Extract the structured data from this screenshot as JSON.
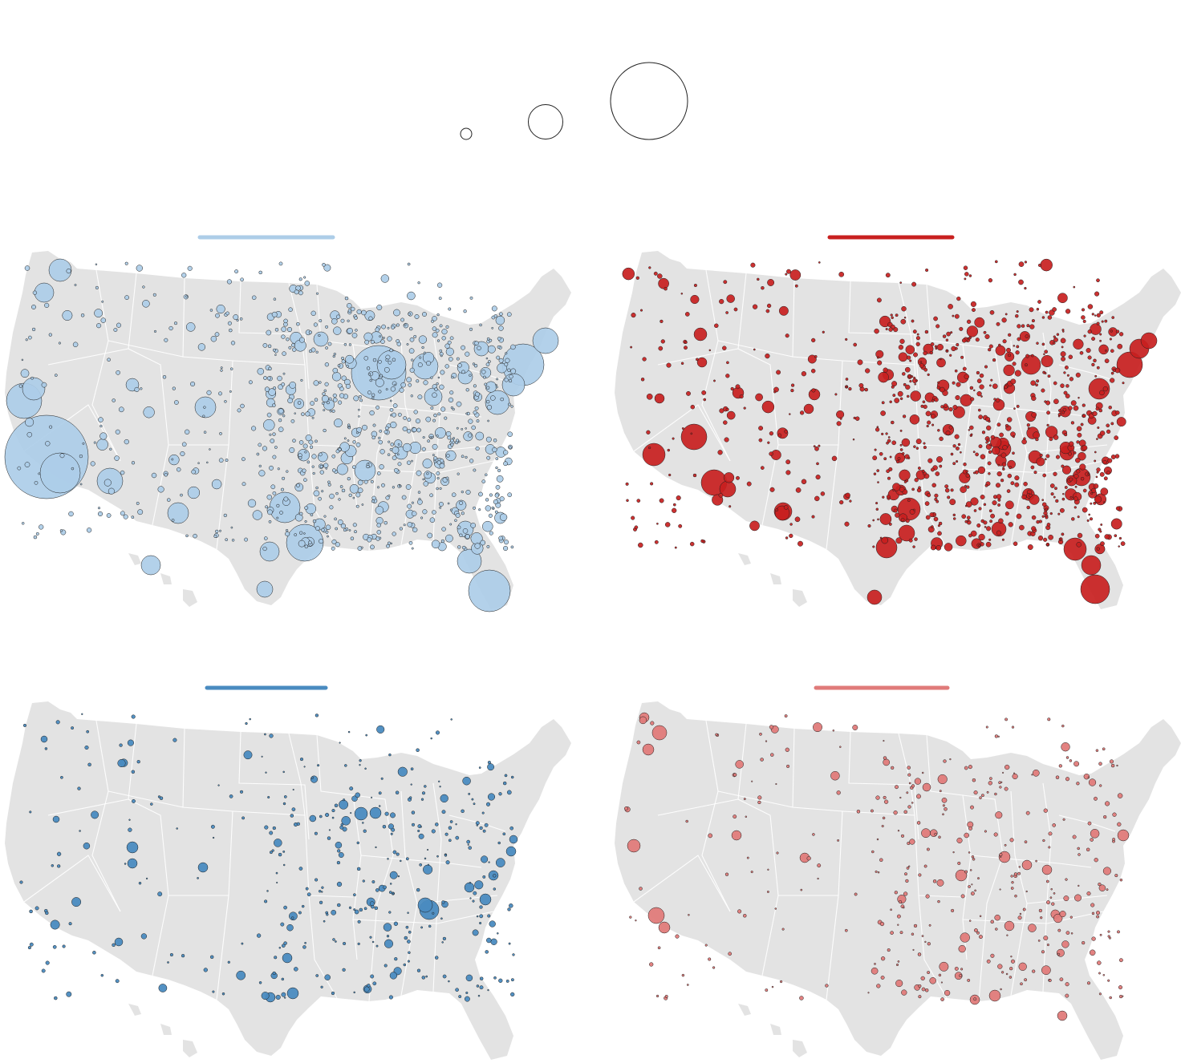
{
  "legend": {
    "circles": [
      {
        "name": "legend-circle-small",
        "size": "small"
      },
      {
        "name": "legend-circle-medium",
        "size": "medium"
      },
      {
        "name": "legend-circle-large",
        "size": "large"
      }
    ]
  },
  "panels": [
    {
      "id": "panel-top-left",
      "color": "#adcde8",
      "bar_color": "#adcde8",
      "density": "dense",
      "cluster_set": "blue-dense"
    },
    {
      "id": "panel-top-right",
      "color": "#c8201f",
      "bar_color": "#c8201f",
      "density": "dense",
      "cluster_set": "red-dense"
    },
    {
      "id": "panel-bottom-left",
      "color": "#4a8bc0",
      "bar_color": "#4a8bc0",
      "density": "sparse",
      "cluster_set": "blue-sparse"
    },
    {
      "id": "panel-bottom-right",
      "color": "#e07b7a",
      "bar_color": "#e07b7a",
      "density": "sparse",
      "cluster_set": "red-sparse"
    }
  ]
}
